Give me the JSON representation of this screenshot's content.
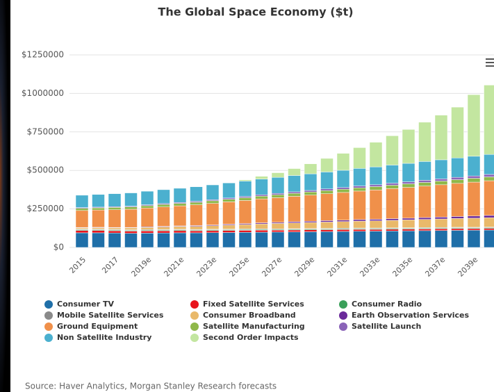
{
  "chart_data": {
    "type": "stacked-bar",
    "title": "The Global Space Economy ($t)",
    "source": "Source: Haver Analytics, Morgan Stanley Research forecasts",
    "categories": [
      "2015",
      null,
      "2017",
      null,
      "2019e",
      null,
      "2021e",
      null,
      "2023e",
      null,
      "2025e",
      null,
      "2027e",
      null,
      "2029e",
      null,
      "2031e",
      null,
      "2033e",
      null,
      "2035e",
      null,
      "2037e",
      null,
      "2039e",
      null
    ],
    "ylim": [
      0,
      1300000
    ],
    "yticks": [
      {
        "value": 0,
        "label": "$0"
      },
      {
        "value": 250000,
        "label": "$250000"
      },
      {
        "value": 500000,
        "label": "$500000"
      },
      {
        "value": 750000,
        "label": "$750000"
      },
      {
        "value": 1000000,
        "label": "$1000000"
      },
      {
        "value": 1250000,
        "label": "$1250000"
      }
    ],
    "grid": true,
    "series": [
      {
        "name": "Consumer TV",
        "color": "#1f6fa8",
        "values": [
          95000,
          95000,
          94000,
          92000,
          93000,
          94000,
          95000,
          95000,
          96000,
          97000,
          98000,
          99000,
          100000,
          101000,
          102000,
          103000,
          104000,
          105000,
          106000,
          107000,
          108000,
          109000,
          110000,
          111000,
          112000,
          113000
        ]
      },
      {
        "name": "Fixed Satellite Services",
        "color": "#e8141c",
        "values": [
          15000,
          15000,
          14000,
          14000,
          14000,
          14000,
          14000,
          13000,
          13000,
          13000,
          13000,
          13000,
          12000,
          12000,
          12000,
          12000,
          12000,
          12000,
          11000,
          11000,
          11000,
          11000,
          11000,
          11000,
          10000,
          10000
        ]
      },
      {
        "name": "Consumer Radio",
        "color": "#3aa05a",
        "values": [
          5000,
          5000,
          5000,
          5000,
          5000,
          5000,
          5000,
          5000,
          5000,
          5000,
          5000,
          5000,
          5000,
          5000,
          5000,
          5000,
          5000,
          5000,
          5000,
          5000,
          5000,
          5000,
          5000,
          5000,
          5000,
          5000
        ]
      },
      {
        "name": "Mobile Satellite Services",
        "color": "#8a8a8a",
        "values": [
          4000,
          4000,
          4000,
          4000,
          4000,
          4000,
          4000,
          4000,
          4000,
          4000,
          4000,
          4000,
          4000,
          4000,
          4000,
          4000,
          4000,
          4000,
          4000,
          4000,
          4000,
          4000,
          4000,
          4000,
          4000,
          4000
        ]
      },
      {
        "name": "Consumer Broadband",
        "color": "#e9b96a",
        "values": [
          8000,
          9000,
          10000,
          12000,
          14000,
          16000,
          18000,
          20000,
          23000,
          26000,
          29000,
          32000,
          35000,
          37000,
          39000,
          41000,
          43000,
          45000,
          47000,
          49000,
          51000,
          53000,
          55000,
          57000,
          59000,
          61000
        ]
      },
      {
        "name": "Earth Observation Services",
        "color": "#6a2a9a",
        "values": [
          3000,
          3000,
          3000,
          3000,
          4000,
          4000,
          4000,
          5000,
          5000,
          6000,
          6000,
          7000,
          7000,
          8000,
          8000,
          9000,
          9000,
          10000,
          10000,
          11000,
          11000,
          12000,
          12000,
          13000,
          14000,
          15000
        ]
      },
      {
        "name": "Ground Equipment",
        "color": "#f0904a",
        "values": [
          110000,
          112000,
          115000,
          118000,
          122000,
          126000,
          130000,
          135000,
          140000,
          145000,
          150000,
          155000,
          160000,
          165000,
          170000,
          175000,
          180000,
          185000,
          190000,
          195000,
          200000,
          205000,
          210000,
          215000,
          220000,
          225000
        ]
      },
      {
        "name": "Satellite Manufacturing",
        "color": "#8fb84a",
        "values": [
          14000,
          14000,
          15000,
          15000,
          15000,
          16000,
          16000,
          16000,
          17000,
          17000,
          18000,
          18000,
          19000,
          19000,
          20000,
          20000,
          21000,
          21000,
          22000,
          22000,
          23000,
          23000,
          24000,
          24000,
          25000,
          25000
        ]
      },
      {
        "name": "Satellite Launch",
        "color": "#8a63b8",
        "values": [
          5000,
          5000,
          5000,
          5000,
          6000,
          6000,
          6000,
          7000,
          7000,
          8000,
          8000,
          9000,
          9000,
          10000,
          10000,
          11000,
          11000,
          12000,
          12000,
          13000,
          13000,
          14000,
          14000,
          15000,
          15000,
          16000
        ]
      },
      {
        "name": "Non Satellite Industry",
        "color": "#4bb0cf",
        "values": [
          80000,
          82000,
          84000,
          86000,
          88000,
          90000,
          92000,
          94000,
          96000,
          98000,
          100000,
          102000,
          104000,
          106000,
          108000,
          110000,
          112000,
          114000,
          116000,
          118000,
          120000,
          122000,
          124000,
          126000,
          128000,
          130000
        ]
      },
      {
        "name": "Second Order Impacts",
        "color": "#c3e6a0",
        "values": [
          0,
          0,
          0,
          0,
          0,
          0,
          0,
          0,
          0,
          2000,
          8000,
          18000,
          30000,
          45000,
          65000,
          88000,
          110000,
          135000,
          160000,
          190000,
          220000,
          255000,
          290000,
          330000,
          400000,
          450000
        ]
      }
    ]
  }
}
